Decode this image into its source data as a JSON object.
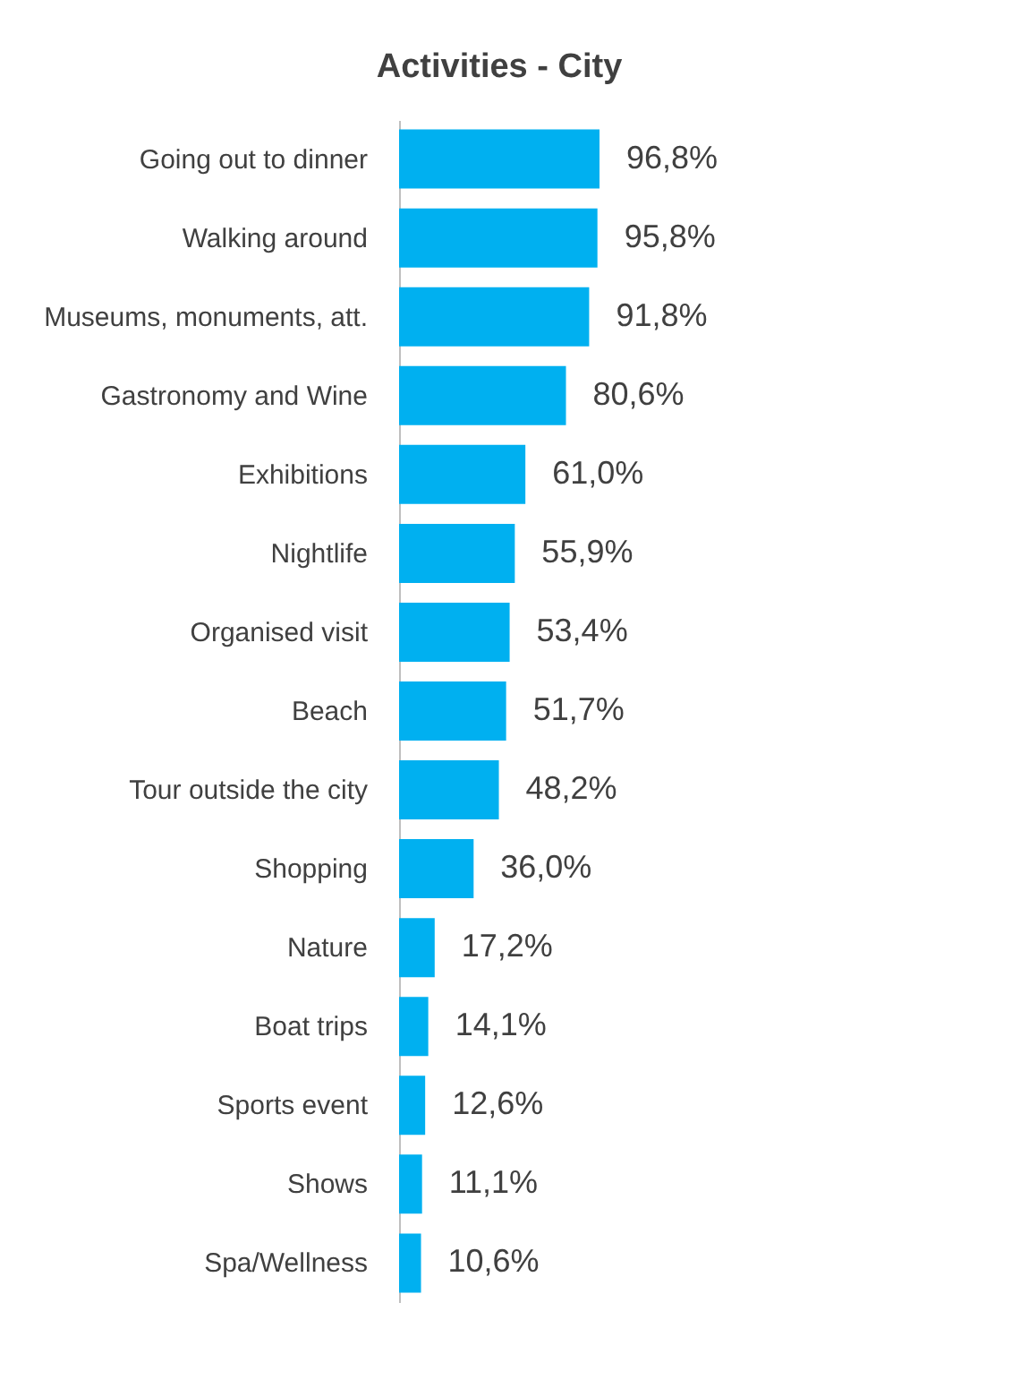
{
  "chart_data": {
    "type": "bar",
    "orientation": "horizontal",
    "title": "Activities - City",
    "categories": [
      "Going out to dinner",
      "Walking around",
      "Museums, monuments, att.",
      "Gastronomy and Wine",
      "Exhibitions",
      "Nightlife",
      "Organised visit",
      "Beach",
      "Tour outside the city",
      "Shopping",
      "Nature",
      "Boat trips",
      "Sports event",
      "Shows",
      "Spa/Wellness"
    ],
    "values": [
      96.8,
      95.8,
      91.8,
      80.6,
      61.0,
      55.9,
      53.4,
      51.7,
      48.2,
      36.0,
      17.2,
      14.1,
      12.6,
      11.1,
      10.6
    ],
    "value_labels": [
      "96,8%",
      "95,8%",
      "91,8%",
      "80,6%",
      "61,0%",
      "55,9%",
      "53,4%",
      "51,7%",
      "48,2%",
      "36,0%",
      "17,2%",
      "14,1%",
      "12,6%",
      "11,1%",
      "10,6%"
    ],
    "color": "#00b0f0"
  }
}
